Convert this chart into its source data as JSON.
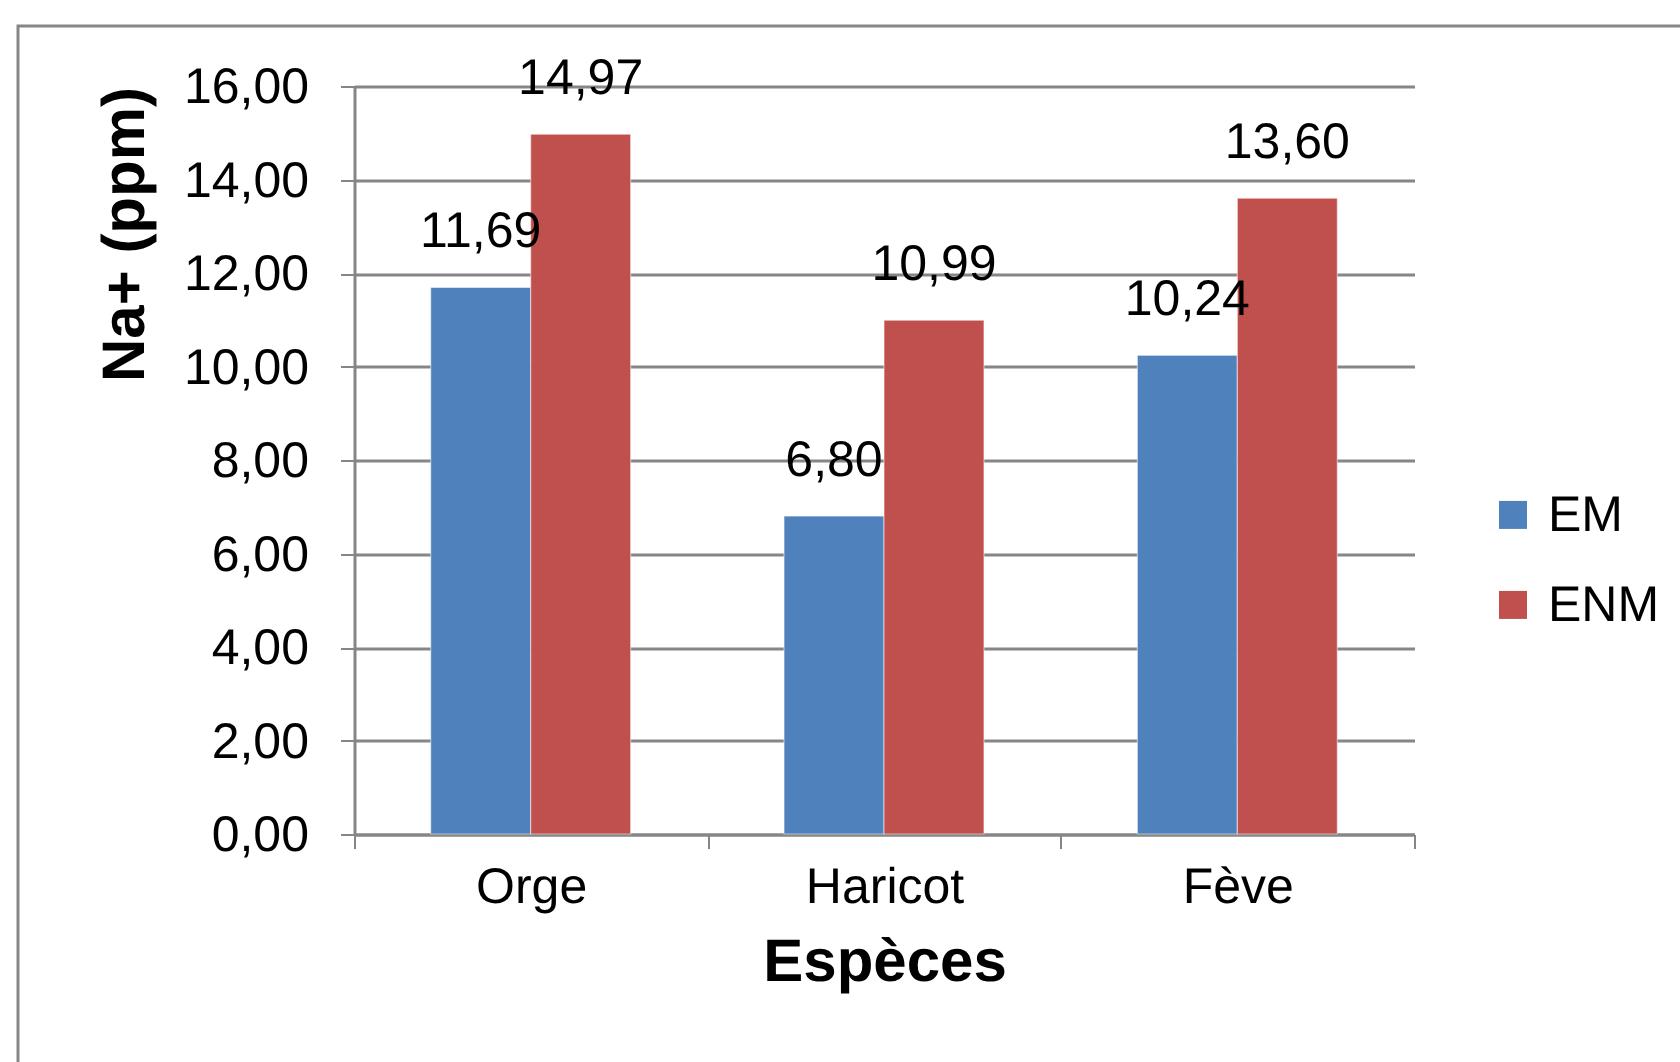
{
  "chart_data": {
    "type": "bar",
    "xlabel": "Espèces",
    "ylabel": "Na+ (ppm)",
    "categories": [
      "Orge",
      "Haricot",
      "Fève"
    ],
    "series": [
      {
        "name": "EM",
        "color": "#4f81bd",
        "values": [
          11.69,
          6.8,
          10.24
        ],
        "value_labels": [
          "11,69",
          "6,80",
          "10,24"
        ]
      },
      {
        "name": "ENM",
        "color": "#c0504d",
        "values": [
          14.97,
          10.99,
          13.6
        ],
        "value_labels": [
          "14,97",
          "10,99",
          "13,60"
        ]
      }
    ],
    "ylim": [
      0,
      16
    ],
    "yticks": [
      {
        "value": 0,
        "label": "0,00"
      },
      {
        "value": 2,
        "label": "2,00"
      },
      {
        "value": 4,
        "label": "4,00"
      },
      {
        "value": 6,
        "label": "6,00"
      },
      {
        "value": 8,
        "label": "8,00"
      },
      {
        "value": 10,
        "label": "10,00"
      },
      {
        "value": 12,
        "label": "12,00"
      },
      {
        "value": 14,
        "label": "14,00"
      },
      {
        "value": 16,
        "label": "16,00"
      }
    ],
    "grid": "y",
    "legend": "right"
  }
}
